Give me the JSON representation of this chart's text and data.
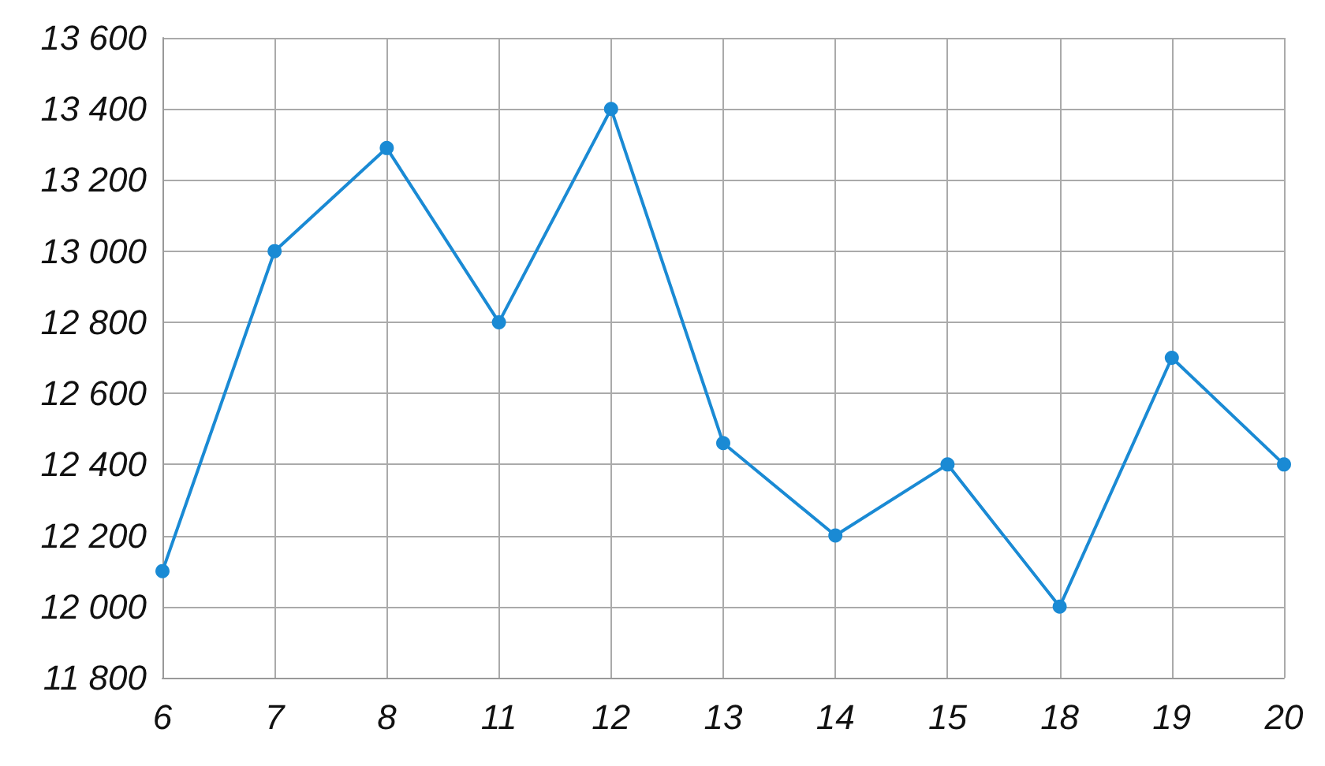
{
  "chart_data": {
    "type": "line",
    "categories": [
      "6",
      "7",
      "8",
      "11",
      "12",
      "13",
      "14",
      "15",
      "18",
      "19",
      "20"
    ],
    "series": [
      {
        "color": "#1a8ad4",
        "values": [
          12100,
          13000,
          13290,
          12800,
          13400,
          12460,
          12200,
          12400,
          12000,
          12700,
          12400
        ]
      }
    ],
    "ylim": [
      11800,
      13600
    ],
    "yticks": [
      {
        "value": 11800,
        "label": "11 800"
      },
      {
        "value": 12000,
        "label": "12 000"
      },
      {
        "value": 12200,
        "label": "12 200"
      },
      {
        "value": 12400,
        "label": "12 400"
      },
      {
        "value": 12600,
        "label": "12 600"
      },
      {
        "value": 12800,
        "label": "12 800"
      },
      {
        "value": 13000,
        "label": "13 000"
      },
      {
        "value": 13200,
        "label": "13 200"
      },
      {
        "value": 13400,
        "label": "13 400"
      },
      {
        "value": 13600,
        "label": "13 600"
      }
    ],
    "grid": true,
    "marker": "circle",
    "line_style": "solid"
  }
}
